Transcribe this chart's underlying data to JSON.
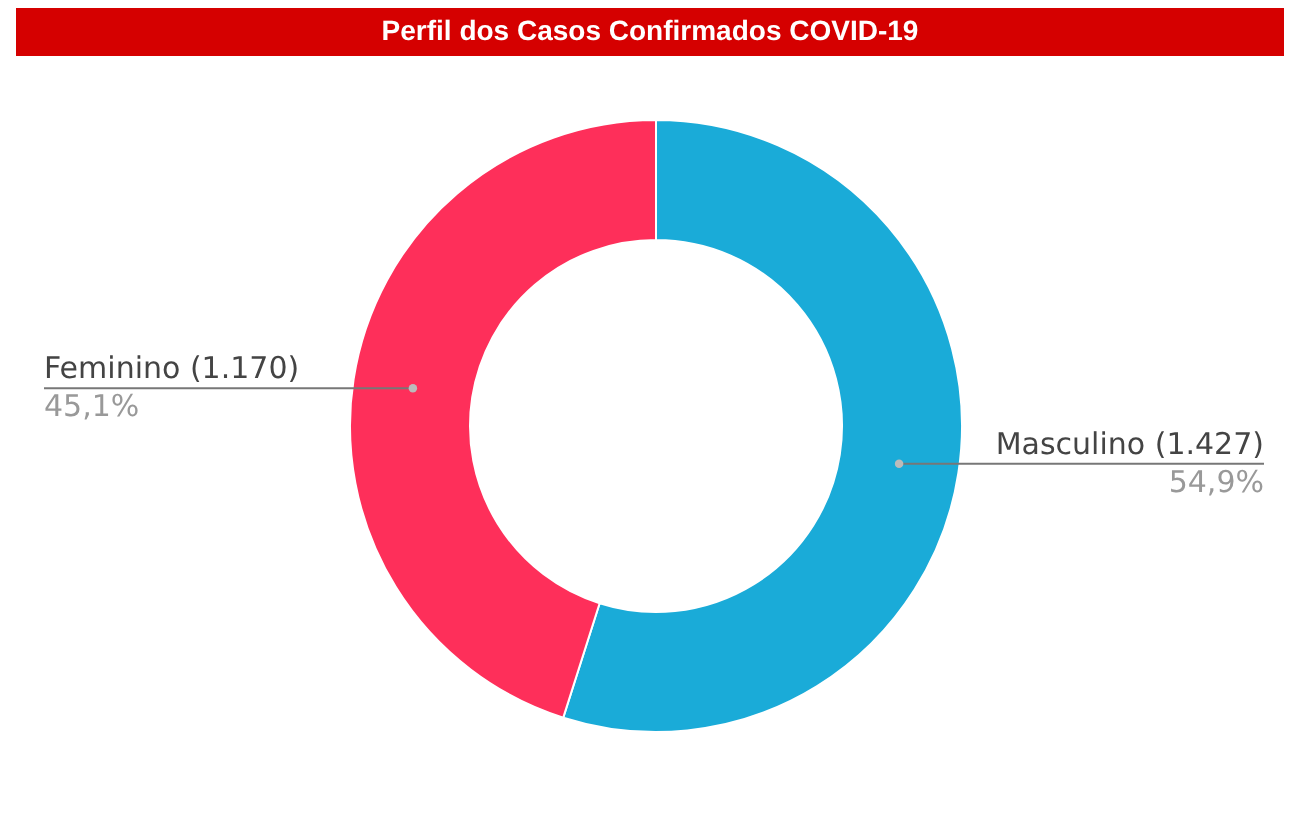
{
  "chart_data": {
    "type": "donut",
    "title": "Perfil dos Casos Confirmados COVID-19",
    "categories": [
      "Masculino (1.427)",
      "Feminino (1.170)"
    ],
    "values": [
      54.9,
      45.1
    ],
    "colors": [
      "#1aabd8",
      "#fe2f5a"
    ],
    "value_labels": [
      "54,9%",
      "45,1%"
    ]
  }
}
